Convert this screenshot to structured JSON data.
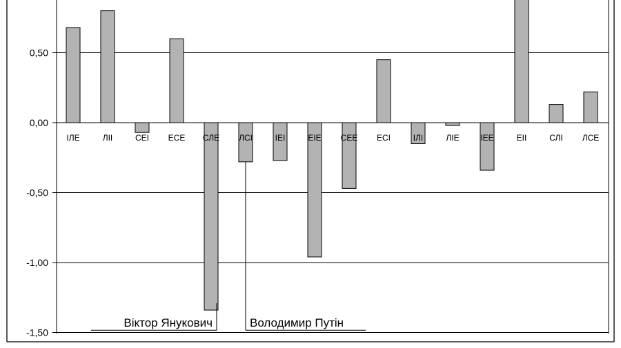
{
  "chart_data": {
    "type": "bar",
    "categories": [
      "ІЛЕ",
      "ЛІІ",
      "СЕІ",
      "ЕСЕ",
      "СЛЕ",
      "ЛСІ",
      "ІЕІ",
      "ЕІЕ",
      "СЕЕ",
      "ЕСІ",
      "ІЛІ",
      "ЛІЕ",
      "ІЕЕ",
      "ЕІІ",
      "СЛІ",
      "ЛСЕ"
    ],
    "values": [
      0.68,
      0.8,
      -0.07,
      0.6,
      -1.34,
      -0.28,
      -0.27,
      -0.96,
      -0.47,
      0.45,
      -0.15,
      -0.02,
      -0.34,
      0.88,
      0.13,
      0.22
    ],
    "ylim": [
      -1.5,
      0.85
    ],
    "yticks": [
      {
        "value": -1.5,
        "label": "-1,50"
      },
      {
        "value": -1.0,
        "label": "-1,00"
      },
      {
        "value": -0.5,
        "label": "-0,50"
      },
      {
        "value": 0.0,
        "label": "0,00"
      },
      {
        "value": 0.5,
        "label": "0,50"
      }
    ],
    "grid": true,
    "bar_color": "#b3b3b3",
    "annotations": [
      {
        "text": "Віктор Янукович",
        "category": "СЛЕ",
        "y": -1.41,
        "side": "left"
      },
      {
        "text": "Володимир Путін",
        "category": "ЛСІ",
        "y": -1.41,
        "side": "right"
      }
    ]
  }
}
